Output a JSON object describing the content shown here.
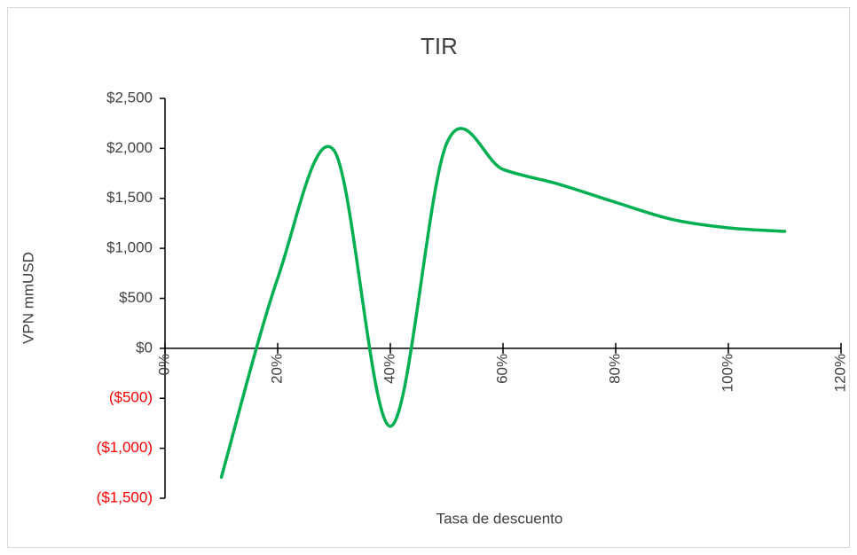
{
  "chart_data": {
    "type": "line",
    "title": "TIR",
    "x_label": "Tasa de descuento",
    "y_label": "VPN mmUSD",
    "x": [
      10,
      20,
      30,
      40,
      50,
      60,
      70,
      80,
      90,
      100,
      110
    ],
    "series": [
      {
        "name": "VPN",
        "color": "#00b050",
        "values": [
          -1290,
          700,
          1980,
          -780,
          2050,
          1790,
          1640,
          1460,
          1290,
          1205,
          1170
        ]
      }
    ],
    "smooth": true,
    "xlim": [
      0,
      120
    ],
    "xticks": [
      {
        "value": 0,
        "label": "0%"
      },
      {
        "value": 20,
        "label": "20%"
      },
      {
        "value": 40,
        "label": "40%"
      },
      {
        "value": 60,
        "label": "60%"
      },
      {
        "value": 80,
        "label": "80%"
      },
      {
        "value": 100,
        "label": "100%"
      },
      {
        "value": 120,
        "label": "120%"
      }
    ],
    "ylim": [
      -1500,
      2500
    ],
    "yticks": [
      {
        "value": -1500,
        "label": "($1,500)"
      },
      {
        "value": -1000,
        "label": "($1,000)"
      },
      {
        "value": -500,
        "label": "($500)"
      },
      {
        "value": 0,
        "label": "$0"
      },
      {
        "value": 500,
        "label": "$500"
      },
      {
        "value": 1000,
        "label": "$1,000"
      },
      {
        "value": 1500,
        "label": "$1,500"
      },
      {
        "value": 2000,
        "label": "$2,000"
      },
      {
        "value": 2500,
        "label": "$2,500"
      }
    ],
    "negative_tick_color": "#ff0000",
    "grid": false
  }
}
